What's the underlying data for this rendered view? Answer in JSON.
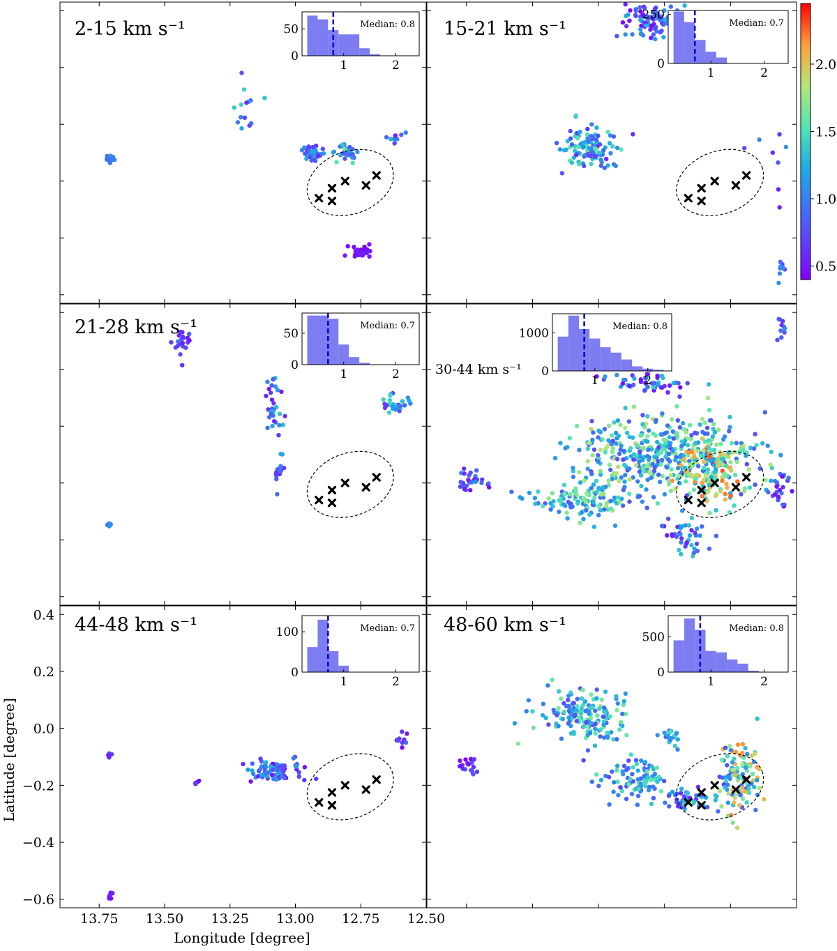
{
  "figure": {
    "xlabel": "Longitude [degree]",
    "ylabel": "Latitude [degree]",
    "median_prefix": "Median:",
    "colormap": "rainbow",
    "marker_color": "#000000",
    "ellipse_style": "dashed black",
    "histogram_color": "#6f6ff0",
    "median_line_color": "#0000cc"
  },
  "colorbar": {
    "range": [
      0.4,
      2.45
    ],
    "ticks": [
      0.5,
      1.0,
      1.5,
      2.0
    ],
    "tick_labels": [
      "0.5",
      "1.0",
      "1.5",
      "2.0"
    ]
  },
  "chart_data": [
    {
      "type": "scatter",
      "title": "2-15 km s⁻¹",
      "xlim": [
        13.9,
        12.5
      ],
      "ylim": [
        -0.63,
        0.43
      ],
      "xticks": [
        "13.75",
        "13.50",
        "13.25",
        "13.00",
        "12.75",
        "12.50"
      ],
      "yticks": [
        "0.4",
        "0.2",
        "0.0",
        "−0.2",
        "−0.4",
        "−0.6"
      ],
      "median": "0.8",
      "clumps": [
        {
          "x": 13.71,
          "y": -0.12,
          "rx": 0.015,
          "ry": 0.015,
          "n": 16,
          "c0": 0.9,
          "c1": 1.2
        },
        {
          "x": 12.93,
          "y": -0.1,
          "rx": 0.04,
          "ry": 0.02,
          "n": 40,
          "c0": 0.5,
          "c1": 1.3
        },
        {
          "x": 12.8,
          "y": -0.1,
          "rx": 0.035,
          "ry": 0.025,
          "n": 35,
          "c0": 0.7,
          "c1": 1.6
        },
        {
          "x": 12.75,
          "y": -0.45,
          "rx": 0.035,
          "ry": 0.018,
          "n": 30,
          "c0": 0.4,
          "c1": 0.55
        },
        {
          "x": 13.18,
          "y": 0.07,
          "rx": 0.06,
          "ry": 0.1,
          "n": 14,
          "c0": 0.5,
          "c1": 1.7
        },
        {
          "x": 12.62,
          "y": -0.05,
          "rx": 0.02,
          "ry": 0.03,
          "n": 8,
          "c0": 0.5,
          "c1": 1.4
        }
      ],
      "hist": {
        "edges": [
          0.3,
          0.5,
          0.7,
          0.9,
          1.3,
          1.5,
          1.7
        ],
        "counts": [
          75,
          68,
          48,
          40,
          14,
          3
        ],
        "ylim": [
          0,
          82
        ],
        "yticks": [
          "0",
          "50"
        ],
        "xticks": [
          "1",
          "2"
        ],
        "xlim": [
          0.2,
          2.45
        ]
      }
    },
    {
      "type": "scatter",
      "title": "15-21 km s⁻¹",
      "xlim": [
        13.9,
        12.5
      ],
      "ylim": [
        -0.63,
        0.43
      ],
      "median": "0.7",
      "clumps": [
        {
          "x": 13.05,
          "y": 0.37,
          "rx": 0.08,
          "ry": 0.05,
          "n": 90,
          "c0": 0.4,
          "c1": 1.3
        },
        {
          "x": 13.28,
          "y": -0.08,
          "rx": 0.08,
          "ry": 0.06,
          "n": 110,
          "c0": 0.6,
          "c1": 1.6
        },
        {
          "x": 12.58,
          "y": -0.2,
          "rx": 0.08,
          "ry": 0.25,
          "n": 12,
          "c0": 0.5,
          "c1": 1.2
        },
        {
          "x": 12.56,
          "y": -0.5,
          "rx": 0.01,
          "ry": 0.02,
          "n": 8,
          "c0": 0.7,
          "c1": 1.1
        }
      ],
      "hist": {
        "edges": [
          0.3,
          0.5,
          0.7,
          0.9,
          1.1,
          1.3
        ],
        "counts": [
          265,
          210,
          120,
          60,
          30
        ],
        "ylim": [
          0,
          270
        ],
        "yticks": [
          "0",
          "250"
        ],
        "xticks": [
          "1",
          "2"
        ],
        "xlim": [
          0.2,
          2.45
        ]
      }
    },
    {
      "type": "scatter",
      "title": "21-28 km s⁻¹",
      "xlim": [
        13.9,
        12.5
      ],
      "ylim": [
        -0.63,
        0.43
      ],
      "median": "0.7",
      "clumps": [
        {
          "x": 13.43,
          "y": 0.3,
          "rx": 0.03,
          "ry": 0.05,
          "n": 22,
          "c0": 0.4,
          "c1": 1.0
        },
        {
          "x": 13.08,
          "y": 0.05,
          "rx": 0.03,
          "ry": 0.12,
          "n": 35,
          "c0": 0.5,
          "c1": 1.4
        },
        {
          "x": 13.06,
          "y": -0.16,
          "rx": 0.02,
          "ry": 0.025,
          "n": 15,
          "c0": 0.6,
          "c1": 1.0
        },
        {
          "x": 12.62,
          "y": 0.07,
          "rx": 0.05,
          "ry": 0.03,
          "n": 30,
          "c0": 0.6,
          "c1": 1.5
        },
        {
          "x": 13.71,
          "y": -0.35,
          "rx": 0.01,
          "ry": 0.01,
          "n": 6,
          "c0": 0.9,
          "c1": 1.1
        }
      ],
      "hist": {
        "edges": [
          0.3,
          0.5,
          0.7,
          0.9,
          1.1,
          1.3,
          1.5
        ],
        "counts": [
          78,
          78,
          73,
          32,
          12,
          3
        ],
        "ylim": [
          0,
          82
        ],
        "yticks": [
          "0",
          "50"
        ],
        "xticks": [
          "1",
          "2"
        ],
        "xlim": [
          0.2,
          2.45
        ]
      }
    },
    {
      "type": "scatter",
      "title": "30-44 km s⁻¹",
      "xlim": [
        13.9,
        12.5
      ],
      "ylim": [
        -0.63,
        0.43
      ],
      "median": "0.8",
      "clumps": [
        {
          "x": 13.0,
          "y": -0.1,
          "rx": 0.3,
          "ry": 0.12,
          "n": 420,
          "c0": 0.7,
          "c1": 1.9
        },
        {
          "x": 12.82,
          "y": -0.16,
          "rx": 0.1,
          "ry": 0.1,
          "n": 140,
          "c0": 1.2,
          "c1": 2.3
        },
        {
          "x": 13.3,
          "y": -0.26,
          "rx": 0.16,
          "ry": 0.05,
          "n": 120,
          "c0": 0.8,
          "c1": 1.8
        },
        {
          "x": 13.05,
          "y": 0.15,
          "rx": 0.18,
          "ry": 0.03,
          "n": 50,
          "c0": 0.4,
          "c1": 1.4
        },
        {
          "x": 13.72,
          "y": -0.2,
          "rx": 0.05,
          "ry": 0.04,
          "n": 30,
          "c0": 0.4,
          "c1": 1.1
        },
        {
          "x": 12.56,
          "y": -0.22,
          "rx": 0.03,
          "ry": 0.05,
          "n": 25,
          "c0": 0.4,
          "c1": 1.0
        },
        {
          "x": 12.56,
          "y": 0.35,
          "rx": 0.02,
          "ry": 0.03,
          "n": 10,
          "c0": 0.6,
          "c1": 1.2
        },
        {
          "x": 12.92,
          "y": -0.38,
          "rx": 0.08,
          "ry": 0.06,
          "n": 40,
          "c0": 0.5,
          "c1": 1.5
        }
      ],
      "hist": {
        "edges": [
          0.3,
          0.5,
          0.7,
          0.9,
          1.1,
          1.3,
          1.5,
          1.7,
          1.9,
          2.1,
          2.3
        ],
        "counts": [
          900,
          1450,
          1100,
          850,
          620,
          480,
          300,
          120,
          60,
          30
        ],
        "ylim": [
          0,
          1500
        ],
        "yticks": [
          "0",
          "1000"
        ],
        "xticks": [
          "1",
          "2"
        ],
        "xlim": [
          0.2,
          2.45
        ]
      }
    },
    {
      "type": "scatter",
      "title": "44-48 km s⁻¹",
      "xlim": [
        13.9,
        12.5
      ],
      "ylim": [
        -0.63,
        0.43
      ],
      "median": "0.7",
      "clumps": [
        {
          "x": 13.08,
          "y": -0.15,
          "rx": 0.08,
          "ry": 0.03,
          "n": 90,
          "c0": 0.4,
          "c1": 1.3
        },
        {
          "x": 13.71,
          "y": -0.09,
          "rx": 0.01,
          "ry": 0.01,
          "n": 6,
          "c0": 0.5,
          "c1": 1.0
        },
        {
          "x": 13.71,
          "y": -0.585,
          "rx": 0.01,
          "ry": 0.008,
          "n": 6,
          "c0": 0.4,
          "c1": 0.6
        },
        {
          "x": 13.38,
          "y": -0.19,
          "rx": 0.01,
          "ry": 0.005,
          "n": 5,
          "c0": 0.4,
          "c1": 0.7
        },
        {
          "x": 12.58,
          "y": -0.04,
          "rx": 0.03,
          "ry": 0.03,
          "n": 10,
          "c0": 0.4,
          "c1": 1.0
        }
      ],
      "hist": {
        "edges": [
          0.3,
          0.5,
          0.7,
          0.9,
          1.1,
          1.3
        ],
        "counts": [
          62,
          130,
          52,
          16,
          0
        ],
        "ylim": [
          0,
          140
        ],
        "yticks": [
          "0",
          "100"
        ],
        "xticks": [
          "1",
          "2"
        ],
        "xlim": [
          0.2,
          2.45
        ]
      }
    },
    {
      "type": "scatter",
      "title": "48-60 km s⁻¹",
      "xlim": [
        13.9,
        12.5
      ],
      "ylim": [
        -0.63,
        0.43
      ],
      "median": "0.8",
      "clumps": [
        {
          "x": 13.3,
          "y": 0.05,
          "rx": 0.15,
          "ry": 0.08,
          "n": 160,
          "c0": 0.7,
          "c1": 1.7
        },
        {
          "x": 13.1,
          "y": -0.18,
          "rx": 0.1,
          "ry": 0.06,
          "n": 90,
          "c0": 0.7,
          "c1": 1.6
        },
        {
          "x": 12.72,
          "y": -0.18,
          "rx": 0.06,
          "ry": 0.1,
          "n": 110,
          "c0": 0.7,
          "c1": 2.2
        },
        {
          "x": 12.9,
          "y": -0.25,
          "rx": 0.08,
          "ry": 0.04,
          "n": 50,
          "c0": 0.6,
          "c1": 1.5
        },
        {
          "x": 13.74,
          "y": -0.13,
          "rx": 0.03,
          "ry": 0.02,
          "n": 18,
          "c0": 0.4,
          "c1": 0.8
        },
        {
          "x": 12.98,
          "y": -0.03,
          "rx": 0.04,
          "ry": 0.03,
          "n": 18,
          "c0": 0.7,
          "c1": 1.5
        }
      ],
      "hist": {
        "edges": [
          0.3,
          0.5,
          0.7,
          0.9,
          1.1,
          1.3,
          1.5,
          1.7,
          1.9
        ],
        "counts": [
          450,
          760,
          600,
          300,
          280,
          180,
          120,
          20
        ],
        "ylim": [
          0,
          800
        ],
        "yticks": [
          "0",
          "500"
        ],
        "xticks": [
          "1",
          "2"
        ],
        "xlim": [
          0.2,
          2.45
        ]
      }
    }
  ],
  "markers": [
    {
      "x": 12.91,
      "y": -0.26
    },
    {
      "x": 12.86,
      "y": -0.225
    },
    {
      "x": 12.86,
      "y": -0.27
    },
    {
      "x": 12.81,
      "y": -0.2
    },
    {
      "x": 12.73,
      "y": -0.215
    },
    {
      "x": 12.69,
      "y": -0.18
    }
  ],
  "ellipse": {
    "x": 12.79,
    "y": -0.205,
    "rx": 0.17,
    "ry": 0.11,
    "angle_deg": -20
  }
}
